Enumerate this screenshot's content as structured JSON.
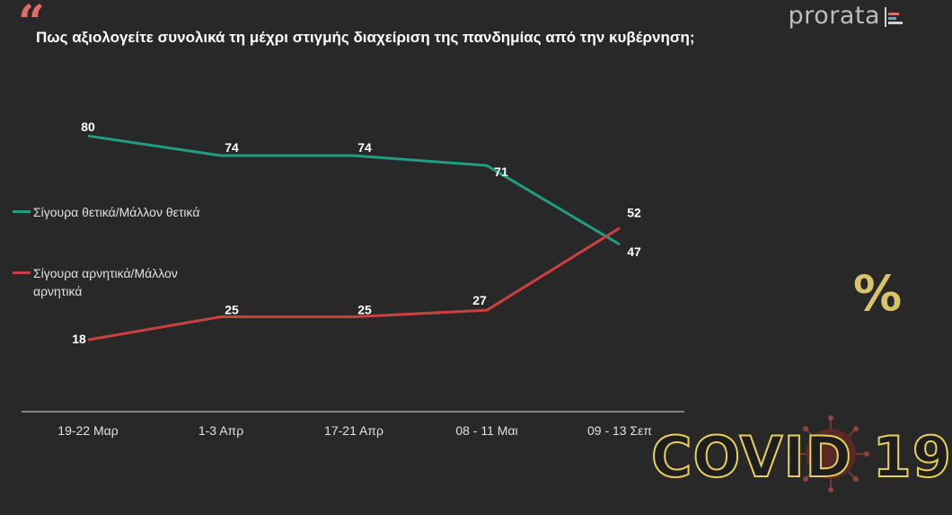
{
  "header": {
    "quote_mark": "“",
    "title": "Πως αξιολογείτε συνολικά τη μέχρι στιγμής διαχείριση της πανδημίας από την κυβέρνηση;",
    "brand": "prorata"
  },
  "chart_data": {
    "type": "line",
    "title": "Πως αξιολογείτε συνολικά τη μέχρι στιγμής διαχείριση της πανδημίας από την κυβέρνηση;",
    "categories": [
      "19-22 Μαρ",
      "1-3 Απρ",
      "17-21 Απρ",
      "08 - 11 Μαι",
      "09 - 13 Σεπ"
    ],
    "series": [
      {
        "name": "Σίγουρα θετικά/Μάλλον θετικά",
        "values": [
          80,
          74,
          74,
          71,
          47
        ],
        "color": "#1f9e82"
      },
      {
        "name": "Σίγουρα αρνητικά/Μάλλον αρνητικά",
        "values": [
          18,
          25,
          25,
          27,
          52
        ],
        "color": "#c9403f"
      }
    ],
    "ylim": [
      0,
      100
    ],
    "xlabel": "",
    "ylabel": "",
    "grid": false,
    "legend_position": "left",
    "data_labels": true
  },
  "decor": {
    "percent_symbol": "%",
    "covid_text": "COVID 19",
    "accent_color": "#e8cf5a",
    "quote_color": "#e56a6a",
    "icons": [
      "quote-icon",
      "prorata-logo-icon",
      "percent-icon",
      "virus-icon"
    ]
  }
}
